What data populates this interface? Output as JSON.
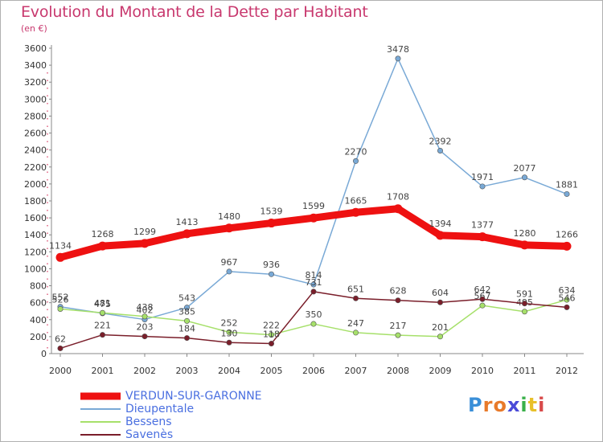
{
  "header": {
    "title": "Evolution du Montant de la Dette par Habitant",
    "subtitle": "(en €)"
  },
  "logo": {
    "letters": [
      "P",
      "r",
      "o",
      "x",
      "i",
      "t",
      "i"
    ],
    "colors": [
      "#3a8fd8",
      "#e87a2a",
      "#e87a2a",
      "#4a4ad8",
      "#3ab04a",
      "#e8c02a",
      "#d84a4a"
    ]
  },
  "chart_data": {
    "type": "line",
    "x": [
      "2000",
      "2001",
      "2002",
      "2003",
      "2004",
      "2005",
      "2006",
      "2007",
      "2008",
      "2009",
      "2010",
      "2011",
      "2012"
    ],
    "ylim": [
      0,
      3600
    ],
    "yticks": [
      "0",
      "200",
      "400",
      "600",
      "800",
      "1000",
      "1200",
      "1400",
      "1600",
      "1800",
      "2000",
      "2200",
      "2400",
      "2600",
      "2800",
      "3000",
      "3200",
      "3400",
      "3600"
    ],
    "grid": false,
    "legend_position": "bottom-left",
    "series": [
      {
        "name": "VERDUN-SUR-GARONNE",
        "color": "#ee1111",
        "values": [
          1134,
          1268,
          1299,
          1413,
          1480,
          1539,
          1599,
          1665,
          1708,
          1394,
          1377,
          1280,
          1266
        ]
      },
      {
        "name": "Dieupentale",
        "color": "#79a9d6",
        "values": [
          552,
          475,
          402,
          543,
          967,
          936,
          814,
          2270,
          3478,
          2392,
          1971,
          2077,
          1881
        ]
      },
      {
        "name": "Bessens",
        "color": "#a6e06a",
        "values": [
          526,
          481,
          438,
          385,
          252,
          222,
          350,
          247,
          217,
          201,
          567,
          495,
          634
        ]
      },
      {
        "name": "Savenès",
        "color": "#7a1e2a",
        "values": [
          62,
          221,
          203,
          184,
          130,
          118,
          731,
          651,
          628,
          604,
          642,
          591,
          546
        ]
      }
    ]
  }
}
